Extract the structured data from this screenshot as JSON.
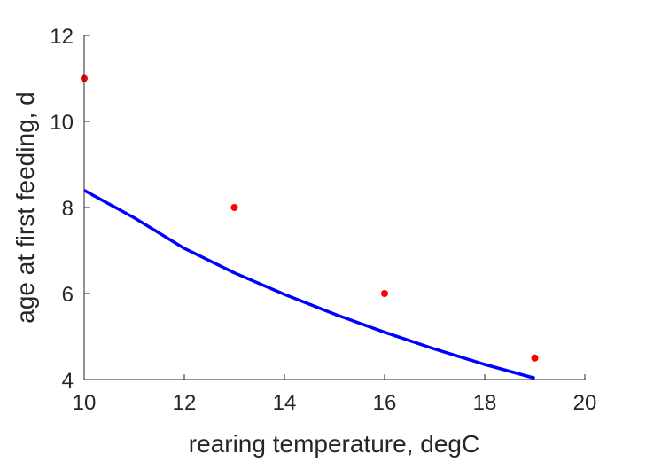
{
  "chart_data": {
    "type": "scatter",
    "xlabel": "rearing temperature, degC",
    "ylabel": "age at first feeding, d",
    "xlim": [
      10,
      20
    ],
    "ylim": [
      4,
      12
    ],
    "xticks": [
      10,
      12,
      14,
      16,
      18,
      20
    ],
    "yticks": [
      4,
      6,
      8,
      10,
      12
    ],
    "grid": false,
    "series": [
      {
        "type": "scatter",
        "color": "#ff0000",
        "x": [
          10,
          13,
          16,
          19
        ],
        "y": [
          11,
          8,
          6,
          4.5
        ]
      },
      {
        "type": "line",
        "color": "#0000ff",
        "x": [
          10,
          11,
          12,
          13,
          14,
          15,
          16,
          17,
          18,
          19
        ],
        "y": [
          8.4,
          7.76,
          7.05,
          6.48,
          5.98,
          5.52,
          5.1,
          4.71,
          4.35,
          4.03
        ]
      }
    ]
  }
}
